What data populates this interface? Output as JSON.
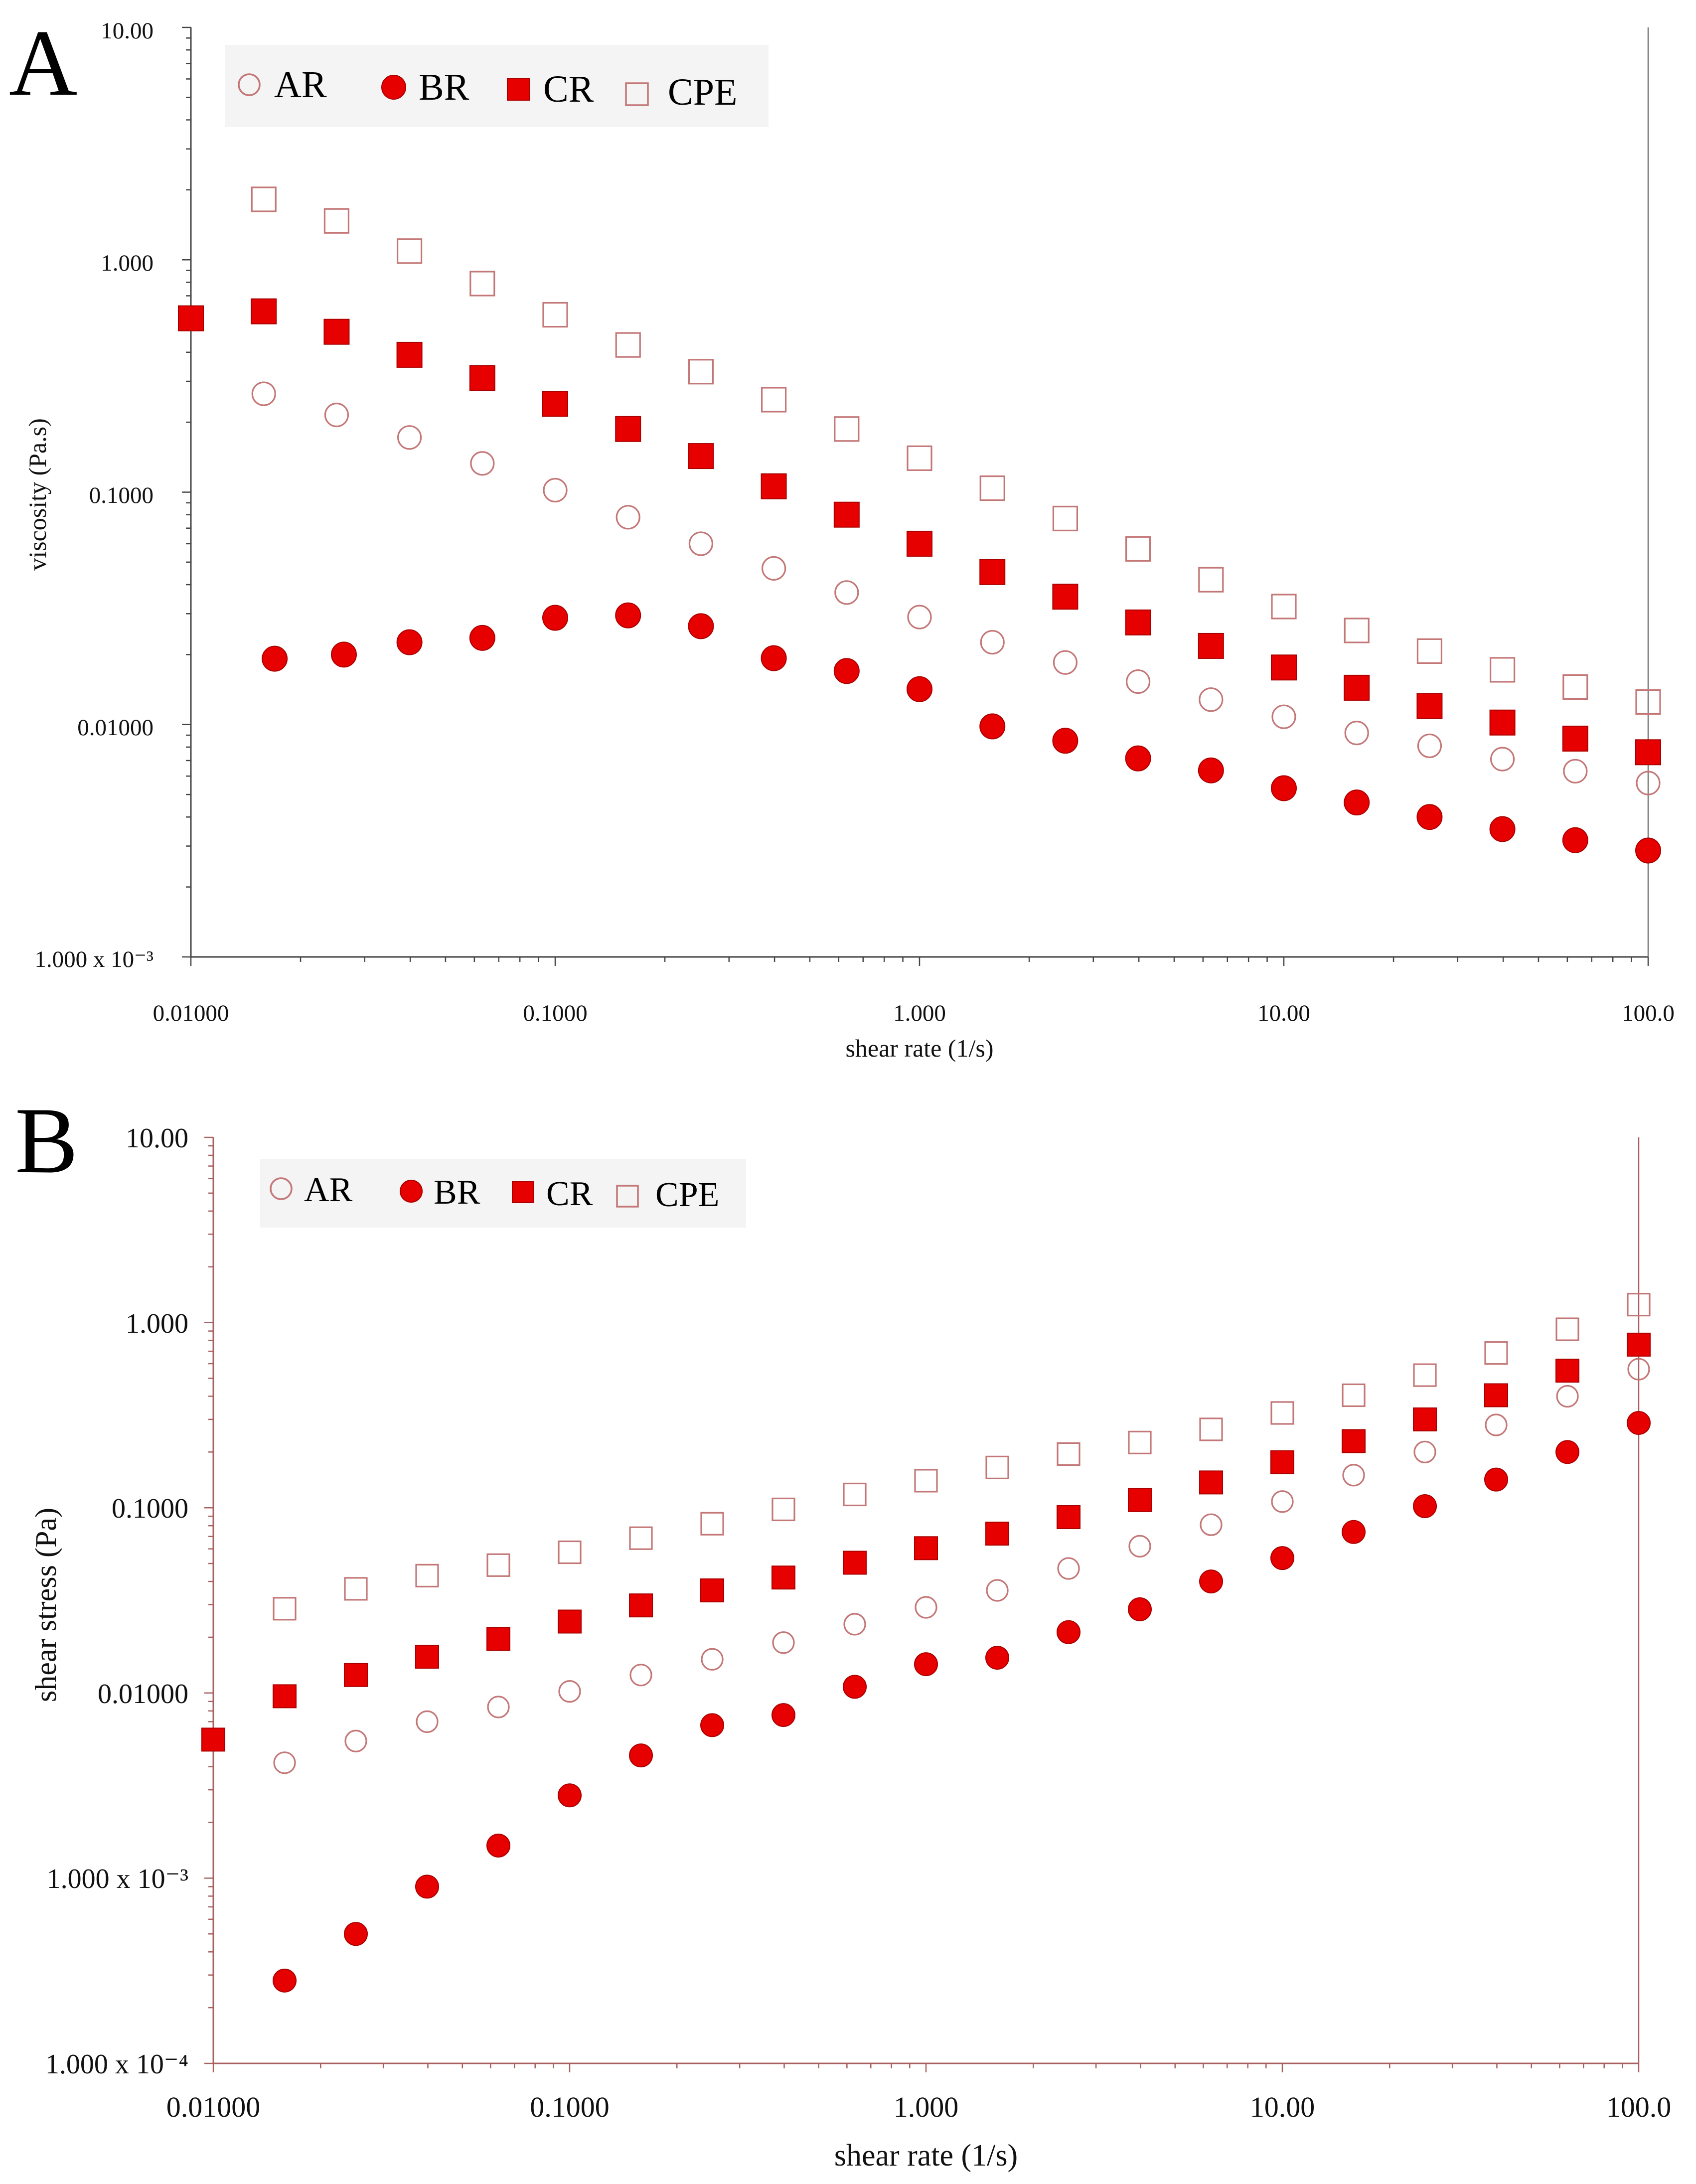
{
  "colors": {
    "filled": "#e60000",
    "open": "#c47777",
    "legend_bg": "#f4f4f4"
  },
  "chart_data": [
    {
      "panel": "A",
      "type": "scatter",
      "xscale": "log",
      "yscale": "log",
      "xlabel": "shear rate (1/s)",
      "ylabel": "viscosity (Pa.s)",
      "xlim": [
        0.01,
        100
      ],
      "ylim": [
        0.001,
        10
      ],
      "xtick_labels": [
        "0.01000",
        "0.1000",
        "1.000",
        "10.00",
        "100.0"
      ],
      "ytick_labels": [
        "1.000 x 10⁻³",
        "0.01000",
        "0.1000",
        "1.000",
        "10.00"
      ],
      "legend": [
        "AR",
        "BR",
        "CR",
        "CPE"
      ],
      "series": [
        {
          "name": "AR",
          "marker": "open-circle",
          "x": [
            0.01585,
            0.02512,
            0.03981,
            0.0631,
            0.1,
            0.1585,
            0.2512,
            0.3981,
            0.631,
            1.0,
            1.585,
            2.512,
            3.981,
            6.31,
            10.0,
            15.85,
            25.12,
            39.81,
            63.1,
            100.0
          ],
          "y": [
            0.265,
            0.215,
            0.172,
            0.133,
            0.102,
            0.078,
            0.06,
            0.047,
            0.037,
            0.029,
            0.0226,
            0.0185,
            0.0153,
            0.0128,
            0.0108,
            0.0092,
            0.0081,
            0.0071,
            0.0063,
            0.0056
          ]
        },
        {
          "name": "BR",
          "marker": "filled-circle",
          "x": [
            0.01698,
            0.0263,
            0.03981,
            0.0631,
            0.1,
            0.1585,
            0.2512,
            0.3981,
            0.631,
            1.0,
            1.585,
            2.512,
            3.981,
            6.31,
            10.0,
            15.85,
            25.12,
            39.81,
            63.1,
            100.0
          ],
          "y": [
            0.0192,
            0.02,
            0.0226,
            0.0236,
            0.0288,
            0.0295,
            0.0265,
            0.0193,
            0.017,
            0.0142,
            0.00982,
            0.00852,
            0.00715,
            0.00635,
            0.00532,
            0.00462,
            0.004,
            0.00355,
            0.00318,
            0.00287
          ]
        },
        {
          "name": "CR",
          "marker": "filled-square",
          "x": [
            0.01,
            0.01585,
            0.02512,
            0.03981,
            0.0631,
            0.1,
            0.1585,
            0.2512,
            0.3981,
            0.631,
            1.0,
            1.585,
            2.512,
            3.981,
            6.31,
            10.0,
            15.85,
            25.12,
            39.81,
            63.1,
            100.0
          ],
          "y": [
            0.56,
            0.6,
            0.49,
            0.39,
            0.31,
            0.24,
            0.187,
            0.143,
            0.106,
            0.08,
            0.06,
            0.0453,
            0.0355,
            0.0275,
            0.0218,
            0.0176,
            0.0144,
            0.012,
            0.0102,
            0.0087,
            0.0076
          ]
        },
        {
          "name": "CPE",
          "marker": "open-square",
          "x": [
            0.01585,
            0.02512,
            0.03981,
            0.0631,
            0.1,
            0.1585,
            0.2512,
            0.3981,
            0.631,
            1.0,
            1.585,
            2.512,
            3.981,
            6.31,
            10.0,
            15.85,
            25.12,
            39.81,
            63.1,
            100.0
          ],
          "y": [
            1.82,
            1.47,
            1.09,
            0.79,
            0.58,
            0.43,
            0.33,
            0.25,
            0.187,
            0.14,
            0.104,
            0.077,
            0.057,
            0.042,
            0.0322,
            0.0254,
            0.0207,
            0.0172,
            0.0145,
            0.0125
          ]
        }
      ]
    },
    {
      "panel": "B",
      "type": "scatter",
      "xscale": "log",
      "yscale": "log",
      "xlabel": "shear rate (1/s)",
      "ylabel": "shear stress (Pa)",
      "xlim": [
        0.01,
        100
      ],
      "ylim": [
        0.0001,
        10
      ],
      "xtick_labels": [
        "0.01000",
        "0.1000",
        "1.000",
        "10.00",
        "100.0"
      ],
      "ytick_labels": [
        "1.000 x 10⁻⁴",
        "1.000 x 10⁻³",
        "0.01000",
        "0.1000",
        "1.000",
        "10.00"
      ],
      "legend": [
        "AR",
        "BR",
        "CR",
        "CPE"
      ],
      "series": [
        {
          "name": "AR",
          "marker": "open-circle",
          "x": [
            0.01585,
            0.02512,
            0.03981,
            0.0631,
            0.1,
            0.1585,
            0.2512,
            0.3981,
            0.631,
            1.0,
            1.585,
            2.512,
            3.981,
            6.31,
            10.0,
            15.85,
            25.12,
            39.81,
            63.1,
            100.0
          ],
          "y": [
            0.0042,
            0.0055,
            0.007,
            0.0084,
            0.0102,
            0.0125,
            0.0152,
            0.0187,
            0.0235,
            0.029,
            0.0358,
            0.047,
            0.062,
            0.081,
            0.108,
            0.15,
            0.2,
            0.28,
            0.4,
            0.56
          ]
        },
        {
          "name": "BR",
          "marker": "filled-circle",
          "x": [
            0.01585,
            0.02512,
            0.03981,
            0.0631,
            0.1,
            0.1585,
            0.2512,
            0.3981,
            0.631,
            1.0,
            1.585,
            2.512,
            3.981,
            6.31,
            10.0,
            15.85,
            25.12,
            39.81,
            63.1,
            100.0
          ],
          "y": [
            0.00028,
            0.0005,
            0.0009,
            0.0015,
            0.0028,
            0.0046,
            0.0067,
            0.0076,
            0.0108,
            0.0143,
            0.0155,
            0.0213,
            0.0283,
            0.04,
            0.0535,
            0.074,
            0.102,
            0.142,
            0.2,
            0.287
          ]
        },
        {
          "name": "CR",
          "marker": "filled-square",
          "x": [
            0.01,
            0.01585,
            0.02512,
            0.03981,
            0.0631,
            0.1,
            0.1585,
            0.2512,
            0.3981,
            0.631,
            1.0,
            1.585,
            2.512,
            3.981,
            6.31,
            10.0,
            15.85,
            25.12,
            39.81,
            63.1,
            100.0
          ],
          "y": [
            0.0056,
            0.0096,
            0.0125,
            0.0157,
            0.0196,
            0.0243,
            0.0297,
            0.0358,
            0.042,
            0.0505,
            0.0605,
            0.0725,
            0.089,
            0.11,
            0.137,
            0.176,
            0.229,
            0.3,
            0.405,
            0.55,
            0.76
          ]
        },
        {
          "name": "CPE",
          "marker": "open-square",
          "x": [
            0.01585,
            0.02512,
            0.03981,
            0.0631,
            0.1,
            0.1585,
            0.2512,
            0.3981,
            0.631,
            1.0,
            1.585,
            2.512,
            3.981,
            6.31,
            10.0,
            15.85,
            25.12,
            39.81,
            63.1,
            100.0
          ],
          "y": [
            0.0285,
            0.0365,
            0.043,
            0.049,
            0.0575,
            0.0685,
            0.082,
            0.098,
            0.118,
            0.14,
            0.165,
            0.195,
            0.225,
            0.265,
            0.325,
            0.405,
            0.52,
            0.685,
            0.92,
            1.25
          ]
        }
      ]
    }
  ]
}
